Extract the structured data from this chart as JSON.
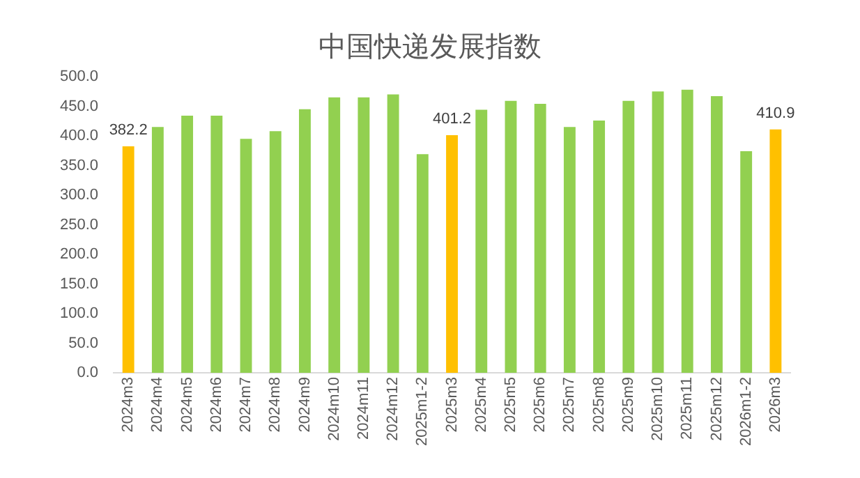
{
  "chart_data": {
    "type": "bar",
    "title": "中国快递发展指数",
    "categories": [
      "2024m3",
      "2024m4",
      "2024m5",
      "2024m6",
      "2024m7",
      "2024m8",
      "2024m9",
      "2024m10",
      "2024m11",
      "2024m12",
      "2025m1-2",
      "2025m3",
      "2025m4",
      "2025m5",
      "2025m6",
      "2025m7",
      "2025m8",
      "2025m9",
      "2025m10",
      "2025m11",
      "2025m12",
      "2026m1-2",
      "2026m3"
    ],
    "values": [
      382.2,
      415,
      434,
      434,
      395,
      408,
      445,
      465,
      465,
      470,
      369,
      401.2,
      444,
      459,
      454,
      415,
      426,
      459,
      475,
      478,
      467,
      374,
      410.9
    ],
    "colors": [
      "#ffc000",
      "#92d050",
      "#92d050",
      "#92d050",
      "#92d050",
      "#92d050",
      "#92d050",
      "#92d050",
      "#92d050",
      "#92d050",
      "#92d050",
      "#ffc000",
      "#92d050",
      "#92d050",
      "#92d050",
      "#92d050",
      "#92d050",
      "#92d050",
      "#92d050",
      "#92d050",
      "#92d050",
      "#92d050",
      "#ffc000"
    ],
    "value_labels": [
      "382.2",
      null,
      null,
      null,
      null,
      null,
      null,
      null,
      null,
      null,
      null,
      "401.2",
      null,
      null,
      null,
      null,
      null,
      null,
      null,
      null,
      null,
      null,
      "410.9"
    ],
    "ylim": [
      0,
      500
    ],
    "yticks": [
      {
        "value": 0,
        "label": "0.0"
      },
      {
        "value": 50,
        "label": "50.0"
      },
      {
        "value": 100,
        "label": "100.0"
      },
      {
        "value": 150,
        "label": "150.0"
      },
      {
        "value": 200,
        "label": "200.0"
      },
      {
        "value": 250,
        "label": "250.0"
      },
      {
        "value": 300,
        "label": "300.0"
      },
      {
        "value": 350,
        "label": "350.0"
      },
      {
        "value": 400,
        "label": "400.0"
      },
      {
        "value": 450,
        "label": "450.0"
      },
      {
        "value": 500,
        "label": "500.0"
      }
    ],
    "grid": false,
    "legend": false
  }
}
